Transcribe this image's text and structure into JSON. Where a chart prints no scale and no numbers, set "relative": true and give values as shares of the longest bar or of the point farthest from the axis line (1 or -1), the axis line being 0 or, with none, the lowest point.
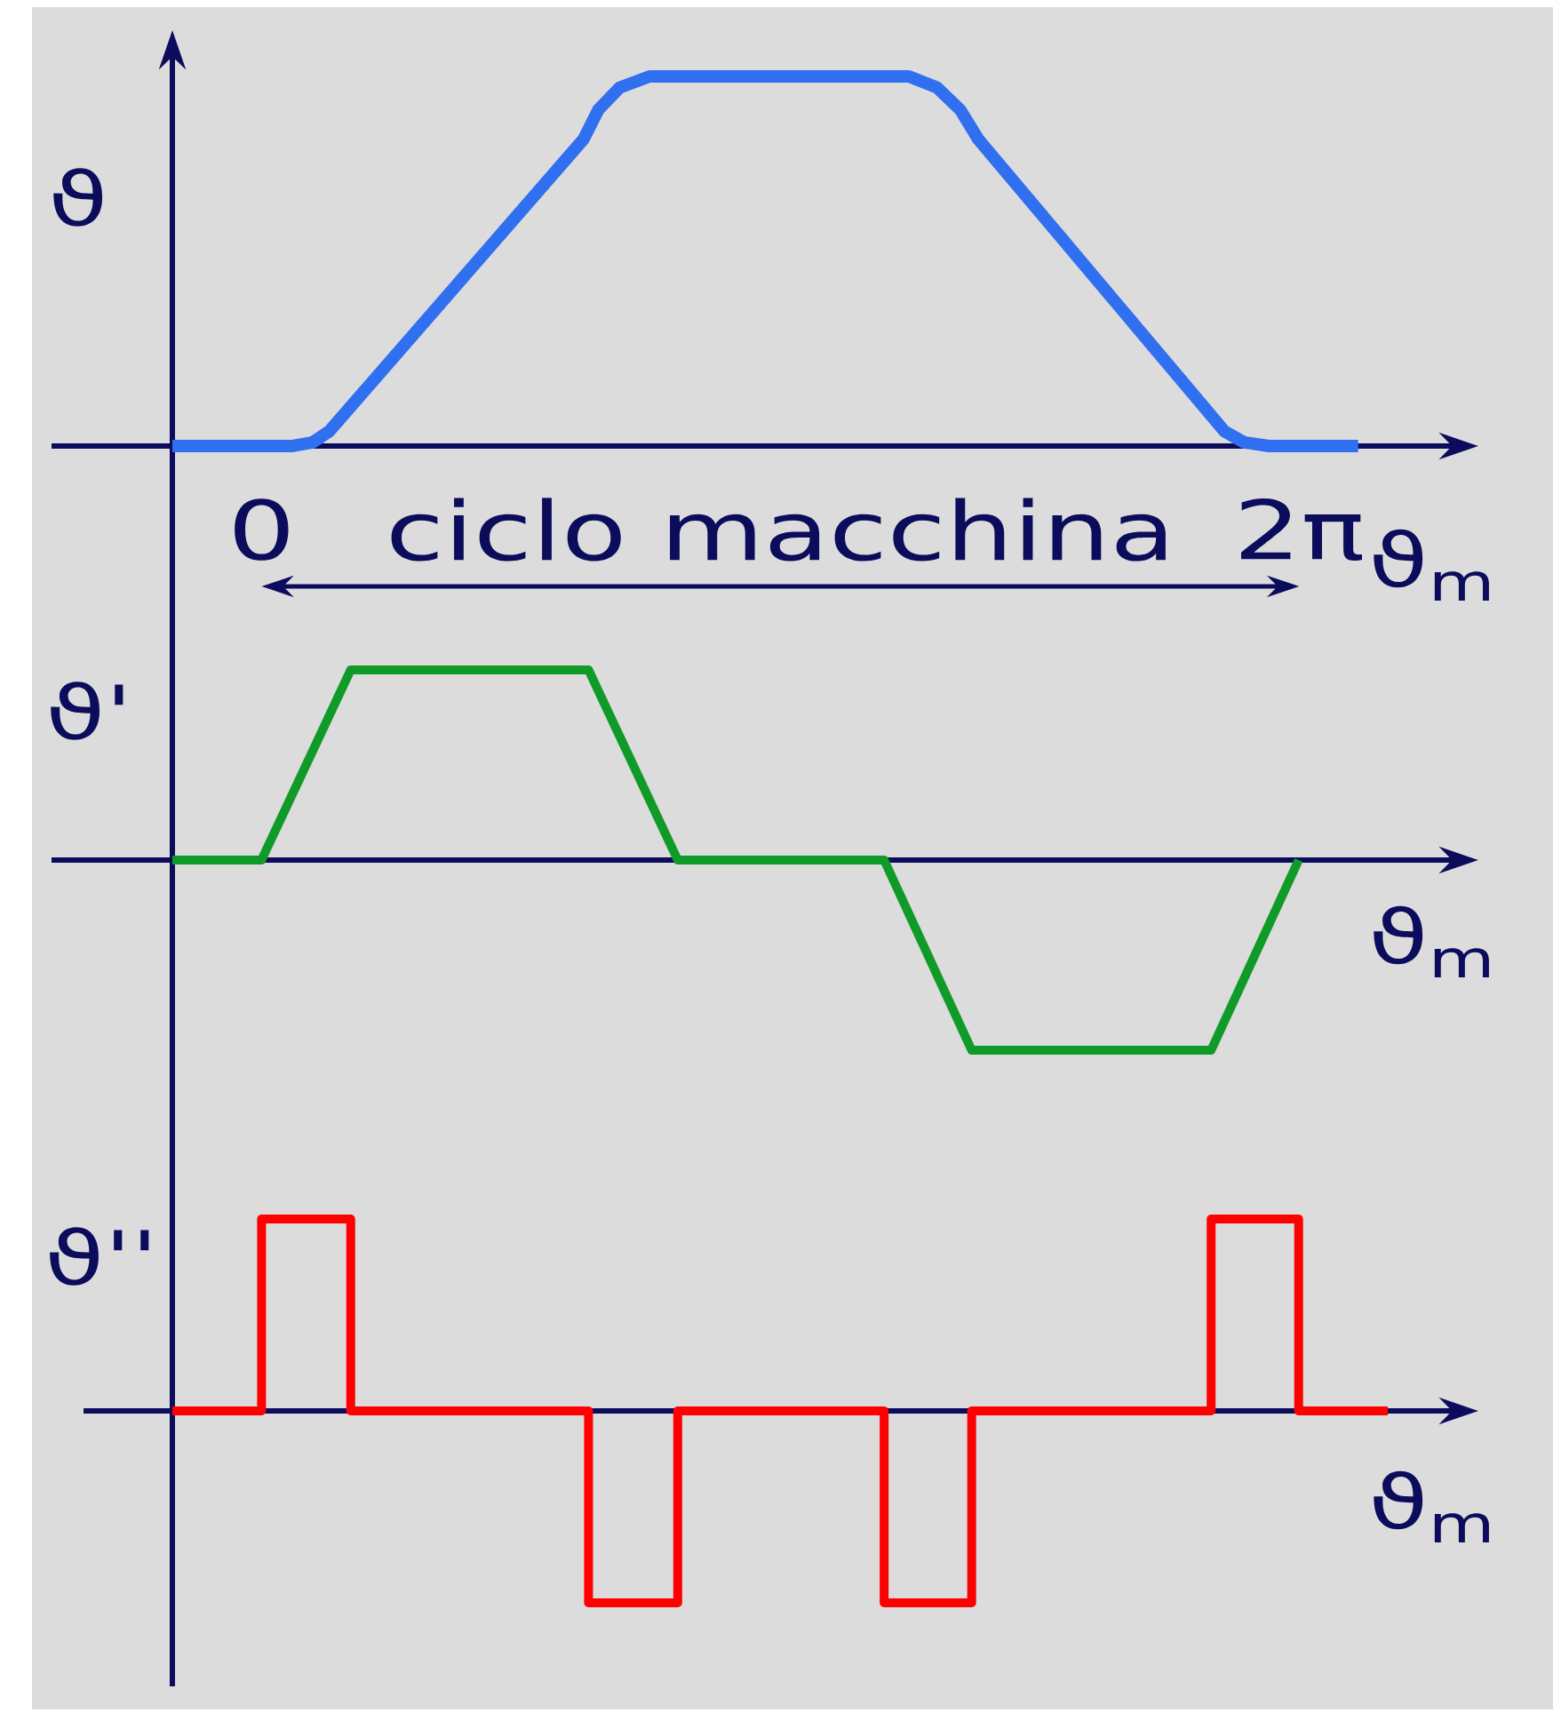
{
  "chart_data": [
    {
      "type": "line",
      "relative": true,
      "ylabel": "ϑ",
      "xlabel": "ϑ$_{m}$",
      "xlim": [
        -0.54,
        7.11
      ],
      "xticks": [
        0,
        {
          "value": 6.2832,
          "label": "2π"
        }
      ],
      "tick_labels": "x",
      "annotations": [
        "ciclo macchina"
      ],
      "color": "#3070f0",
      "x": [
        -0.54,
        0.19,
        0.31,
        0.41,
        1.95,
        2.04,
        2.17,
        2.35,
        3.92,
        4.09,
        4.23,
        4.34,
        5.83,
        5.95,
        6.1,
        6.64
      ],
      "values": [
        0,
        0,
        0.01,
        0.04,
        0.83,
        0.91,
        0.97,
        1,
        1,
        0.97,
        0.91,
        0.83,
        0.04,
        0.01,
        0,
        0
      ]
    },
    {
      "type": "line",
      "relative": true,
      "ylabel": "ϑ'",
      "xlabel": "ϑ$_{m}$",
      "xlim": [
        -0.54,
        7.11
      ],
      "tick_labels": false,
      "color": "#109a28",
      "x": [
        -0.54,
        0,
        0.54,
        1.98,
        2.52,
        3.77,
        4.3,
        5.75,
        6.28
      ],
      "values": [
        0,
        0,
        1,
        1,
        0,
        0,
        -1,
        -1,
        0
      ]
    },
    {
      "type": "step",
      "relative": true,
      "ylabel": "ϑ''",
      "xlabel": "ϑ$_{m}$",
      "xlim": [
        -0.54,
        7.11
      ],
      "tick_labels": false,
      "color": "#ff0000",
      "x": [
        -0.54,
        0,
        0.54,
        1.98,
        2.52,
        3.77,
        4.3,
        5.75,
        6.28,
        6.82
      ],
      "values": [
        0,
        1,
        0,
        -1,
        0,
        -1,
        0,
        1,
        0,
        0
      ]
    }
  ]
}
